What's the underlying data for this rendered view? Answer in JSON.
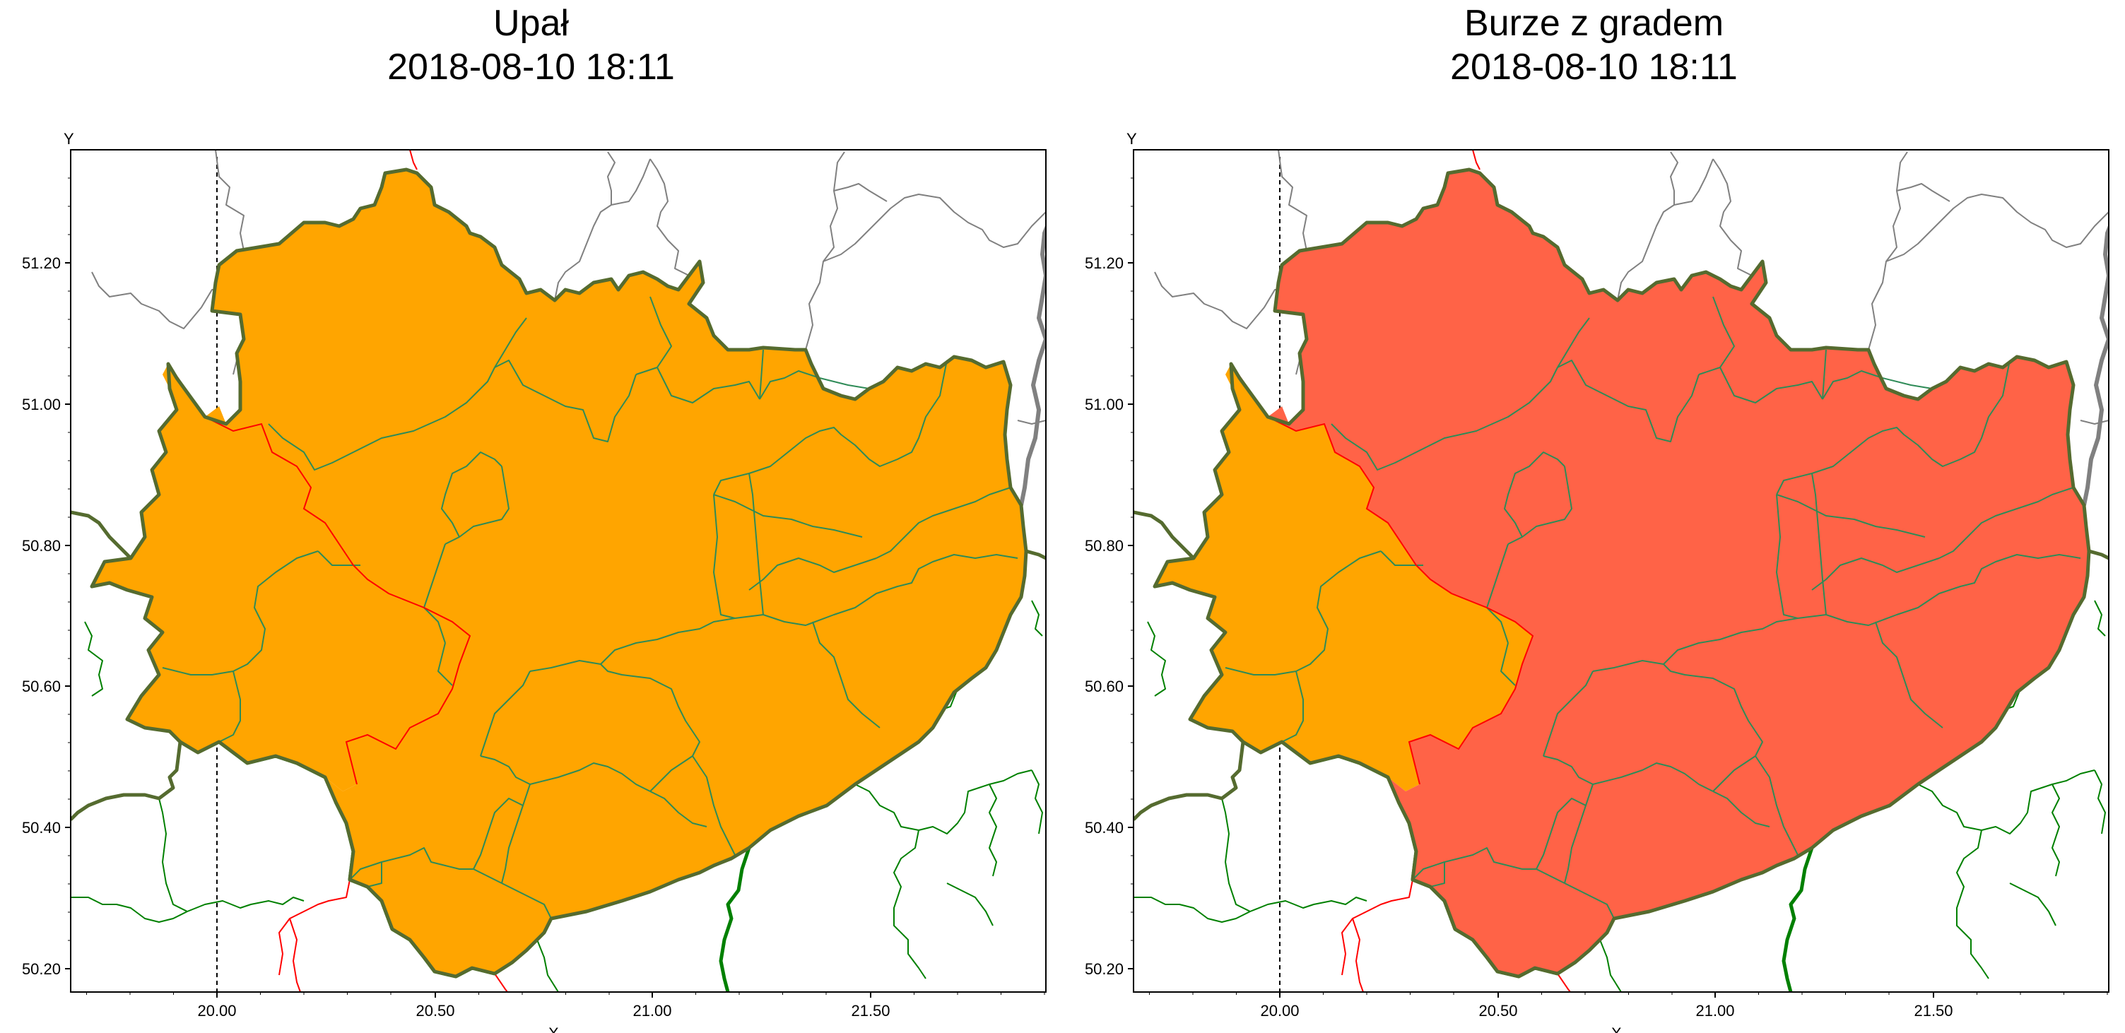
{
  "panels": [
    {
      "title": "Upał",
      "timestamp": "2018-08-10 18:11",
      "fill_colors": {
        "west": "#FFA500",
        "east": "#FFA500"
      }
    },
    {
      "title": "Burze z gradem",
      "timestamp": "2018-08-10 18:11",
      "fill_colors": {
        "west": "#FFA500",
        "east": "#FF6347"
      }
    }
  ],
  "axes": {
    "y_axis_label": "Y",
    "x_axis_label": "X",
    "y_ticks": [
      "51.20",
      "51.00",
      "50.80",
      "50.60",
      "50.40",
      "50.20"
    ],
    "x_ticks": [
      "20.00",
      "20.50",
      "21.00",
      "21.50"
    ]
  },
  "colors": {
    "voivodeship_border": "#556B2F",
    "district_border": "#2E8B57",
    "neighbor_border_gray": "#808080",
    "neighbor_border_green": "#008000",
    "neighbor_border_red": "#FF0000",
    "meridian": "#000000"
  }
}
